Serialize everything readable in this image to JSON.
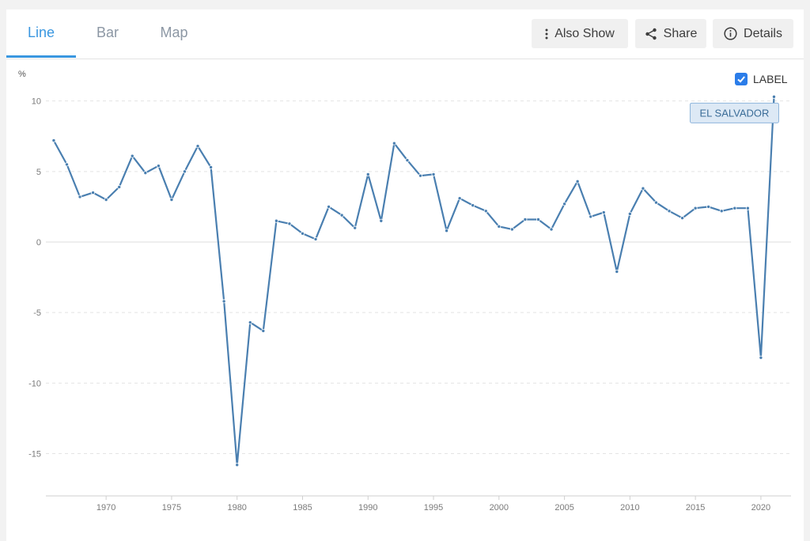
{
  "tabs": [
    {
      "label": "Line",
      "active": true
    },
    {
      "label": "Bar",
      "active": false
    },
    {
      "label": "Map",
      "active": false
    }
  ],
  "toolbar": {
    "also_show": {
      "label": "Also Show",
      "icon": "kebab-icon"
    },
    "share": {
      "label": "Share",
      "icon": "share-icon"
    },
    "details": {
      "label": "Details",
      "icon": "info-icon"
    }
  },
  "legend": {
    "label": "LABEL",
    "checked": true
  },
  "colors": {
    "accent": "#3a97e0",
    "line": "#4a7fb0",
    "checkbox": "#2b7de9"
  },
  "chart_data": {
    "type": "line",
    "ylabel": "%",
    "xlim": [
      1965.4,
      2022.3
    ],
    "ylim": [
      -18,
      12
    ],
    "yticks": [
      10,
      5,
      0,
      -5,
      -10,
      -15
    ],
    "xticks": [
      1970,
      1975,
      1980,
      1985,
      1990,
      1995,
      2000,
      2005,
      2010,
      2015,
      2020
    ],
    "grid": true,
    "series": [
      {
        "name": "EL SALVADOR",
        "x": [
          1966,
          1967,
          1968,
          1969,
          1970,
          1971,
          1972,
          1973,
          1974,
          1975,
          1976,
          1977,
          1978,
          1979,
          1980,
          1981,
          1982,
          1983,
          1984,
          1985,
          1986,
          1987,
          1988,
          1989,
          1990,
          1991,
          1992,
          1993,
          1994,
          1995,
          1996,
          1997,
          1998,
          1999,
          2000,
          2001,
          2002,
          2003,
          2004,
          2005,
          2006,
          2007,
          2008,
          2009,
          2010,
          2011,
          2012,
          2013,
          2014,
          2015,
          2016,
          2017,
          2018,
          2019,
          2020,
          2021
        ],
        "values": [
          7.2,
          5.5,
          3.2,
          3.5,
          3.0,
          3.9,
          6.1,
          4.9,
          5.4,
          3.0,
          5.0,
          6.8,
          5.3,
          -4.2,
          -15.8,
          -5.7,
          -6.3,
          1.5,
          1.3,
          0.6,
          0.2,
          2.5,
          1.9,
          1.0,
          4.8,
          1.5,
          7.0,
          5.8,
          4.7,
          4.8,
          0.8,
          3.1,
          2.6,
          2.2,
          1.1,
          0.9,
          1.6,
          1.6,
          0.9,
          2.7,
          4.3,
          1.8,
          2.1,
          -2.1,
          2.0,
          3.8,
          2.8,
          2.2,
          1.7,
          2.4,
          2.5,
          2.2,
          2.4,
          2.4,
          -8.2,
          10.3
        ]
      }
    ]
  }
}
